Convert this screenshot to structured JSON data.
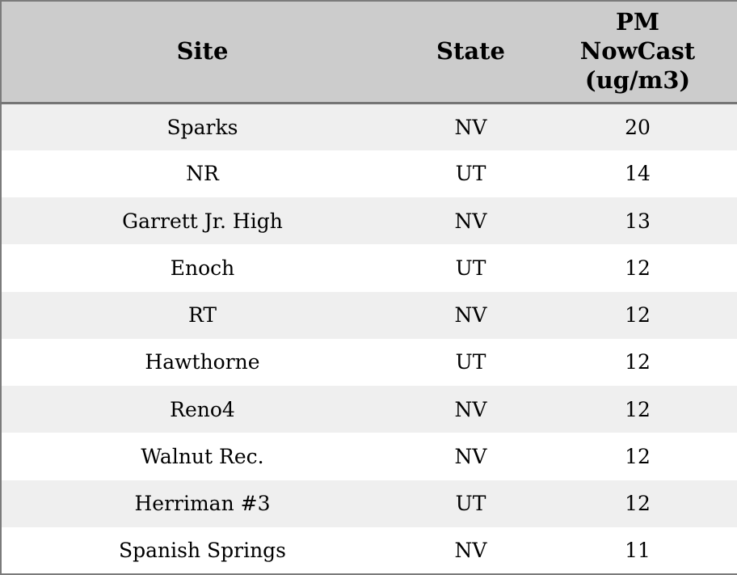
{
  "chart_data": {
    "type": "table",
    "title": "",
    "columns": [
      "Site",
      "State",
      "PM NowCast (ug/m3)"
    ],
    "rows": [
      [
        "Sparks",
        "NV",
        20
      ],
      [
        "NR",
        "UT",
        14
      ],
      [
        "Garrett Jr. High",
        "NV",
        13
      ],
      [
        "Enoch",
        "UT",
        12
      ],
      [
        "RT",
        "NV",
        12
      ],
      [
        "Hawthorne",
        "UT",
        12
      ],
      [
        "Reno4",
        "NV",
        12
      ],
      [
        "Walnut Rec.",
        "NV",
        12
      ],
      [
        "Herriman #3",
        "UT",
        12
      ],
      [
        "Spanish Springs",
        "NV",
        11
      ]
    ],
    "layout_hints": {
      "zebra_striping": true,
      "all_cells_center_aligned": true,
      "header_bold": true
    }
  },
  "display": {
    "column_labels": [
      "Site",
      "State",
      "PM\nNowCast\n(ug/m3)"
    ]
  },
  "colors": {
    "header_bg": "#cccccc",
    "stripe_row_bg": "#efefef",
    "plain_row_bg": "#ffffff",
    "outer_border": "#7b7b7b",
    "header_divider": "#757575",
    "text": "#000000"
  }
}
